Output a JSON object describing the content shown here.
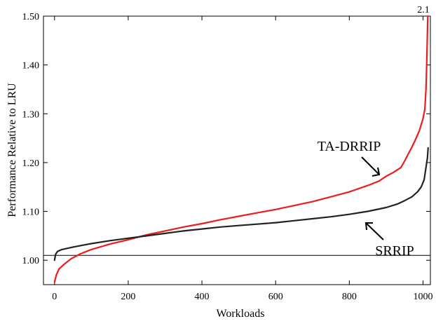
{
  "chart_data": {
    "type": "line",
    "title": "",
    "xlabel": "Workloads",
    "ylabel": "Performance Relative to LRU",
    "xlim": [
      -30,
      1020
    ],
    "ylim": [
      0.95,
      1.5
    ],
    "x_ticks": [
      0,
      200,
      400,
      600,
      800,
      1000
    ],
    "x_tick_labels": [
      "0",
      "200",
      "400",
      "600",
      "800",
      "1000"
    ],
    "y_ticks": [
      1.0,
      1.1,
      1.2,
      1.3,
      1.4,
      1.5
    ],
    "y_tick_labels": [
      "1.00",
      "1.10",
      "1.20",
      "1.30",
      "1.40",
      "1.50"
    ],
    "grid": false,
    "reference_line": {
      "y": 1.01,
      "color": "#000000"
    },
    "series": [
      {
        "name": "TA-DRRIP",
        "color": "#ee1c1c",
        "points": [
          [
            0,
            0.955
          ],
          [
            5,
            0.97
          ],
          [
            12,
            0.982
          ],
          [
            25,
            0.991
          ],
          [
            45,
            1.003
          ],
          [
            70,
            1.013
          ],
          [
            100,
            1.022
          ],
          [
            150,
            1.033
          ],
          [
            200,
            1.042
          ],
          [
            250,
            1.052
          ],
          [
            300,
            1.06
          ],
          [
            350,
            1.068
          ],
          [
            400,
            1.075
          ],
          [
            450,
            1.083
          ],
          [
            500,
            1.09
          ],
          [
            550,
            1.097
          ],
          [
            600,
            1.104
          ],
          [
            650,
            1.112
          ],
          [
            700,
            1.12
          ],
          [
            750,
            1.13
          ],
          [
            800,
            1.14
          ],
          [
            850,
            1.153
          ],
          [
            880,
            1.162
          ],
          [
            900,
            1.172
          ],
          [
            920,
            1.18
          ],
          [
            940,
            1.19
          ],
          [
            950,
            1.203
          ],
          [
            960,
            1.218
          ],
          [
            970,
            1.232
          ],
          [
            980,
            1.248
          ],
          [
            990,
            1.265
          ],
          [
            1000,
            1.29
          ],
          [
            1005,
            1.31
          ],
          [
            1008,
            1.35
          ],
          [
            1010,
            1.4
          ],
          [
            1013,
            1.5
          ]
        ]
      },
      {
        "name": "SRRIP",
        "color": "#222222",
        "points": [
          [
            0,
            1.0
          ],
          [
            3,
            1.012
          ],
          [
            8,
            1.018
          ],
          [
            20,
            1.022
          ],
          [
            50,
            1.027
          ],
          [
            100,
            1.034
          ],
          [
            150,
            1.04
          ],
          [
            200,
            1.045
          ],
          [
            250,
            1.05
          ],
          [
            300,
            1.055
          ],
          [
            350,
            1.06
          ],
          [
            400,
            1.064
          ],
          [
            450,
            1.068
          ],
          [
            500,
            1.071
          ],
          [
            550,
            1.074
          ],
          [
            600,
            1.077
          ],
          [
            650,
            1.081
          ],
          [
            700,
            1.085
          ],
          [
            750,
            1.089
          ],
          [
            800,
            1.094
          ],
          [
            850,
            1.1
          ],
          [
            900,
            1.108
          ],
          [
            930,
            1.115
          ],
          [
            950,
            1.122
          ],
          [
            970,
            1.13
          ],
          [
            985,
            1.14
          ],
          [
            995,
            1.15
          ],
          [
            1003,
            1.165
          ],
          [
            1008,
            1.19
          ],
          [
            1012,
            1.21
          ],
          [
            1014,
            1.23
          ]
        ]
      }
    ],
    "annotations": [
      {
        "text": "TA-DRRIP",
        "points_to": "TA-DRRIP"
      },
      {
        "text": "SRRIP",
        "points_to": "SRRIP"
      }
    ],
    "clipped_label": "2.1"
  }
}
